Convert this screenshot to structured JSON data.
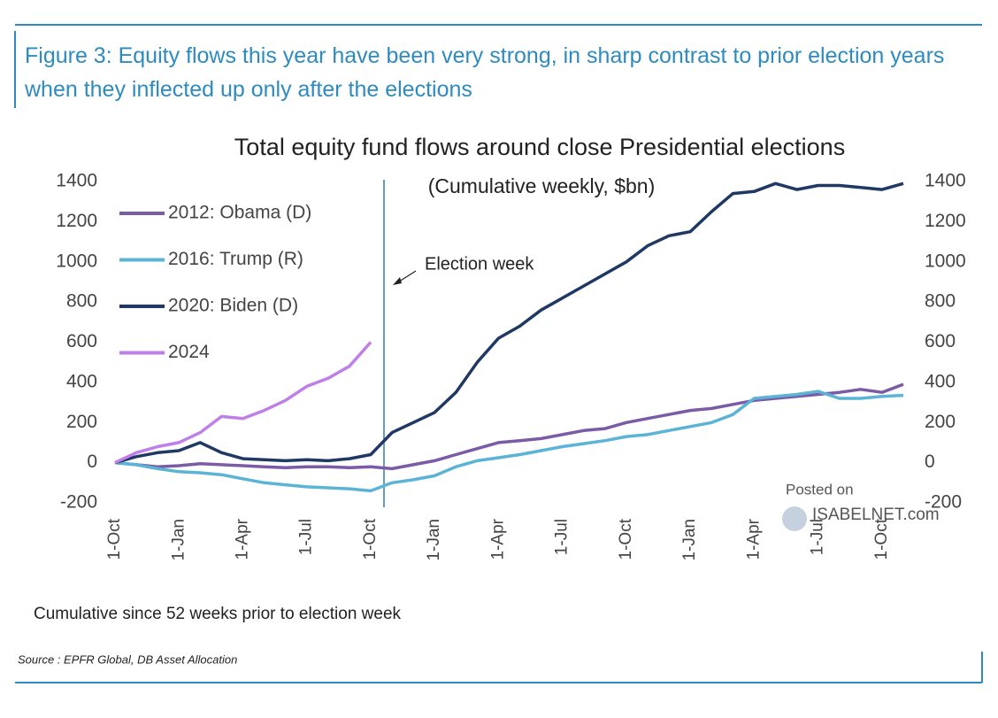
{
  "chart_data": {
    "type": "line",
    "figure_title": "Figure 3: Equity flows this year have been very strong, in sharp contrast to prior election years when they inflected up only after the elections",
    "title": "Total equity fund flows around close Presidential elections",
    "subtitle": "(Cumulative weekly, $bn)",
    "annotation": "Election week",
    "note": "Cumulative since 52 weeks prior to election week",
    "source": "Source : EPFR Global, DB Asset Allocation",
    "watermark": [
      "Posted on",
      "ISABELNET.com"
    ],
    "categories": [
      "1-Oct",
      null,
      null,
      "1-Jan",
      null,
      null,
      "1-Apr",
      null,
      null,
      "1-Jul",
      null,
      null,
      "1-Oct",
      null,
      null,
      "1-Jan",
      null,
      null,
      "1-Apr",
      null,
      null,
      "1-Jul",
      null,
      null,
      "1-Oct",
      null,
      null,
      "1-Jan",
      null,
      null,
      "1-Apr",
      null,
      null,
      "1-Jul",
      null,
      null,
      "1-Oct",
      null
    ],
    "series": [
      {
        "name": "2012: Obama (D)",
        "color": "#7b5ba6",
        "values": [
          0,
          -10,
          -20,
          -15,
          -5,
          -10,
          -15,
          -20,
          -25,
          -20,
          -20,
          -25,
          -20,
          -30,
          -10,
          10,
          40,
          70,
          100,
          110,
          120,
          140,
          160,
          170,
          200,
          220,
          240,
          260,
          270,
          290,
          310,
          320,
          330,
          340,
          350,
          365,
          350,
          390
        ]
      },
      {
        "name": "2016: Trump (R)",
        "color": "#5bb4d6",
        "values": [
          0,
          -10,
          -30,
          -45,
          -50,
          -60,
          -80,
          -100,
          -110,
          -120,
          -125,
          -130,
          -140,
          -100,
          -85,
          -65,
          -20,
          10,
          25,
          40,
          60,
          80,
          95,
          110,
          130,
          140,
          160,
          180,
          200,
          240,
          320,
          330,
          340,
          355,
          320,
          320,
          330,
          335
        ]
      },
      {
        "name": "2020: Biden (D)",
        "color": "#1f3864",
        "values": [
          0,
          30,
          50,
          60,
          100,
          50,
          20,
          15,
          10,
          15,
          10,
          20,
          40,
          150,
          200,
          250,
          350,
          500,
          620,
          680,
          760,
          820,
          880,
          940,
          1000,
          1080,
          1130,
          1150,
          1250,
          1340,
          1350,
          1390,
          1360,
          1380,
          1380,
          1370,
          1360,
          1390
        ]
      },
      {
        "name": "2024",
        "color": "#c07fe8",
        "values": [
          0,
          50,
          80,
          100,
          150,
          230,
          220,
          260,
          310,
          380,
          420,
          480,
          600,
          null,
          null,
          null,
          null,
          null,
          null,
          null,
          null,
          null,
          null,
          null,
          null,
          null,
          null,
          null,
          null,
          null,
          null,
          null,
          null,
          null,
          null,
          null,
          null,
          null
        ]
      }
    ],
    "ylim": [
      -200,
      1400
    ],
    "yticks": [
      -200,
      0,
      200,
      400,
      600,
      800,
      1000,
      1200,
      1400
    ],
    "y2lim": [
      -200,
      1400
    ],
    "y2ticks": [
      -200,
      0,
      200,
      400,
      600,
      800,
      1000,
      1200,
      1400
    ],
    "legend": "upper left"
  }
}
